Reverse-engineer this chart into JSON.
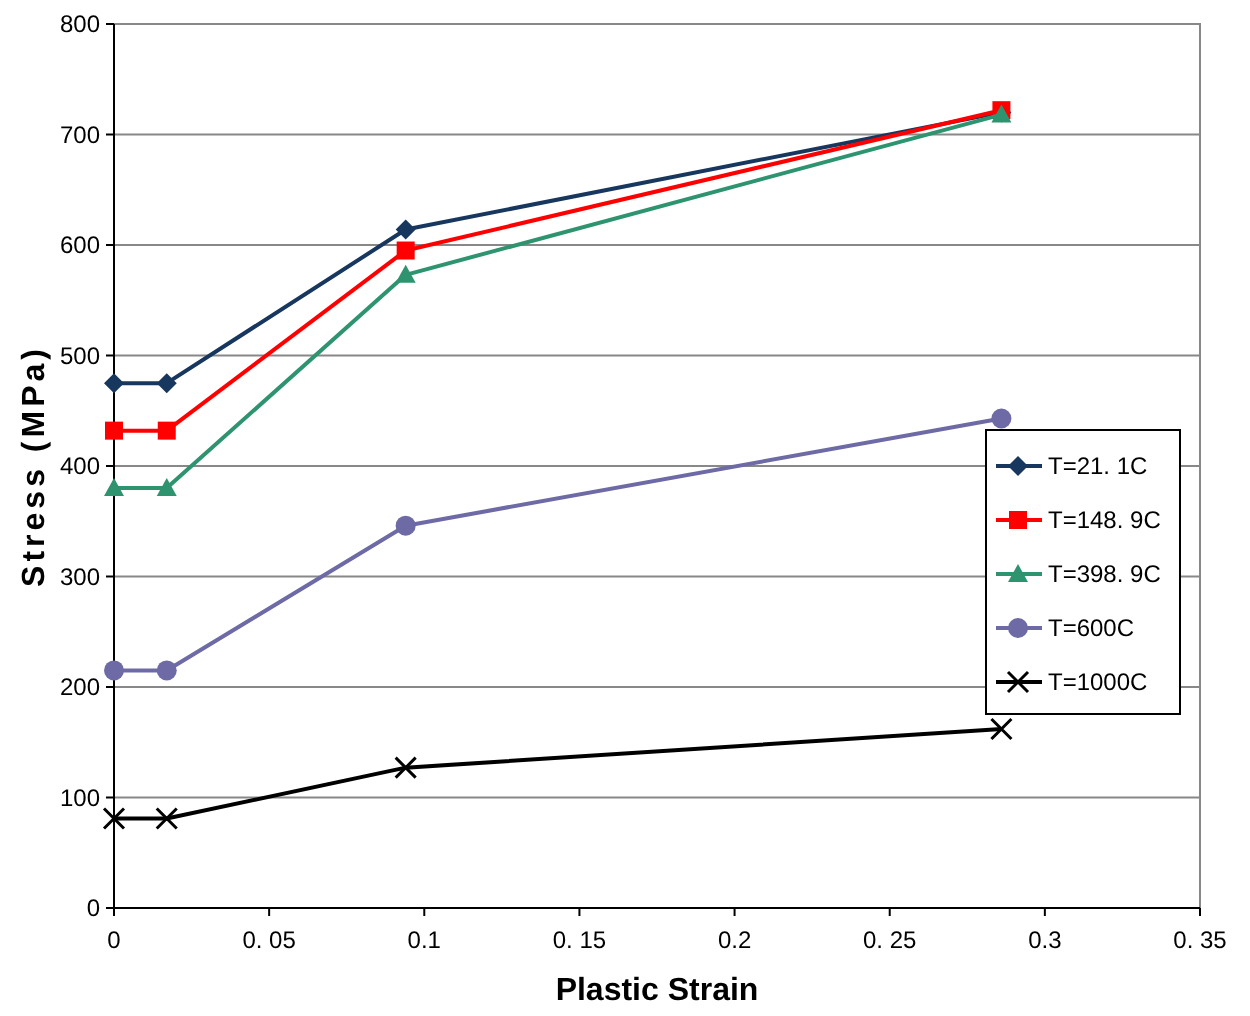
{
  "chart_data": {
    "type": "line",
    "xlabel": "Plastic Strain",
    "ylabel": "Stress (MPa)",
    "xlim": [
      0,
      0.35
    ],
    "xticks": [
      0,
      {
        "value": 0.05,
        "label": "0. 05"
      },
      {
        "value": 0.1,
        "label": "0.1"
      },
      {
        "value": 0.15,
        "label": "0. 15"
      },
      {
        "value": 0.2,
        "label": "0.2"
      },
      {
        "value": 0.25,
        "label": "0. 25"
      },
      {
        "value": 0.3,
        "label": "0.3"
      },
      {
        "value": 0.35,
        "label": "0. 35"
      }
    ],
    "ylim": [
      0,
      800
    ],
    "yticks": [
      0,
      100,
      200,
      300,
      400,
      500,
      600,
      700,
      800
    ],
    "grid": "y",
    "legend": "right",
    "x": [
      0,
      0.017,
      0.094,
      0.286
    ],
    "series": [
      {
        "name": "T=21. 1C",
        "color": "#17375e",
        "marker": "diamond",
        "values": [
          475,
          475,
          614,
          720
        ]
      },
      {
        "name": "T=148. 9C",
        "color": "#ff0000",
        "marker": "square",
        "values": [
          432,
          432,
          595,
          722
        ]
      },
      {
        "name": "T=398. 9C",
        "color": "#2e9470",
        "marker": "triangle",
        "values": [
          380,
          380,
          573,
          718
        ]
      },
      {
        "name": "T=600C",
        "color": "#6d6aa6",
        "marker": "circle",
        "values": [
          215,
          215,
          346,
          443
        ]
      },
      {
        "name": "T=1000C",
        "color": "#000000",
        "marker": "cross",
        "values": [
          81,
          81,
          127,
          162
        ]
      }
    ]
  }
}
